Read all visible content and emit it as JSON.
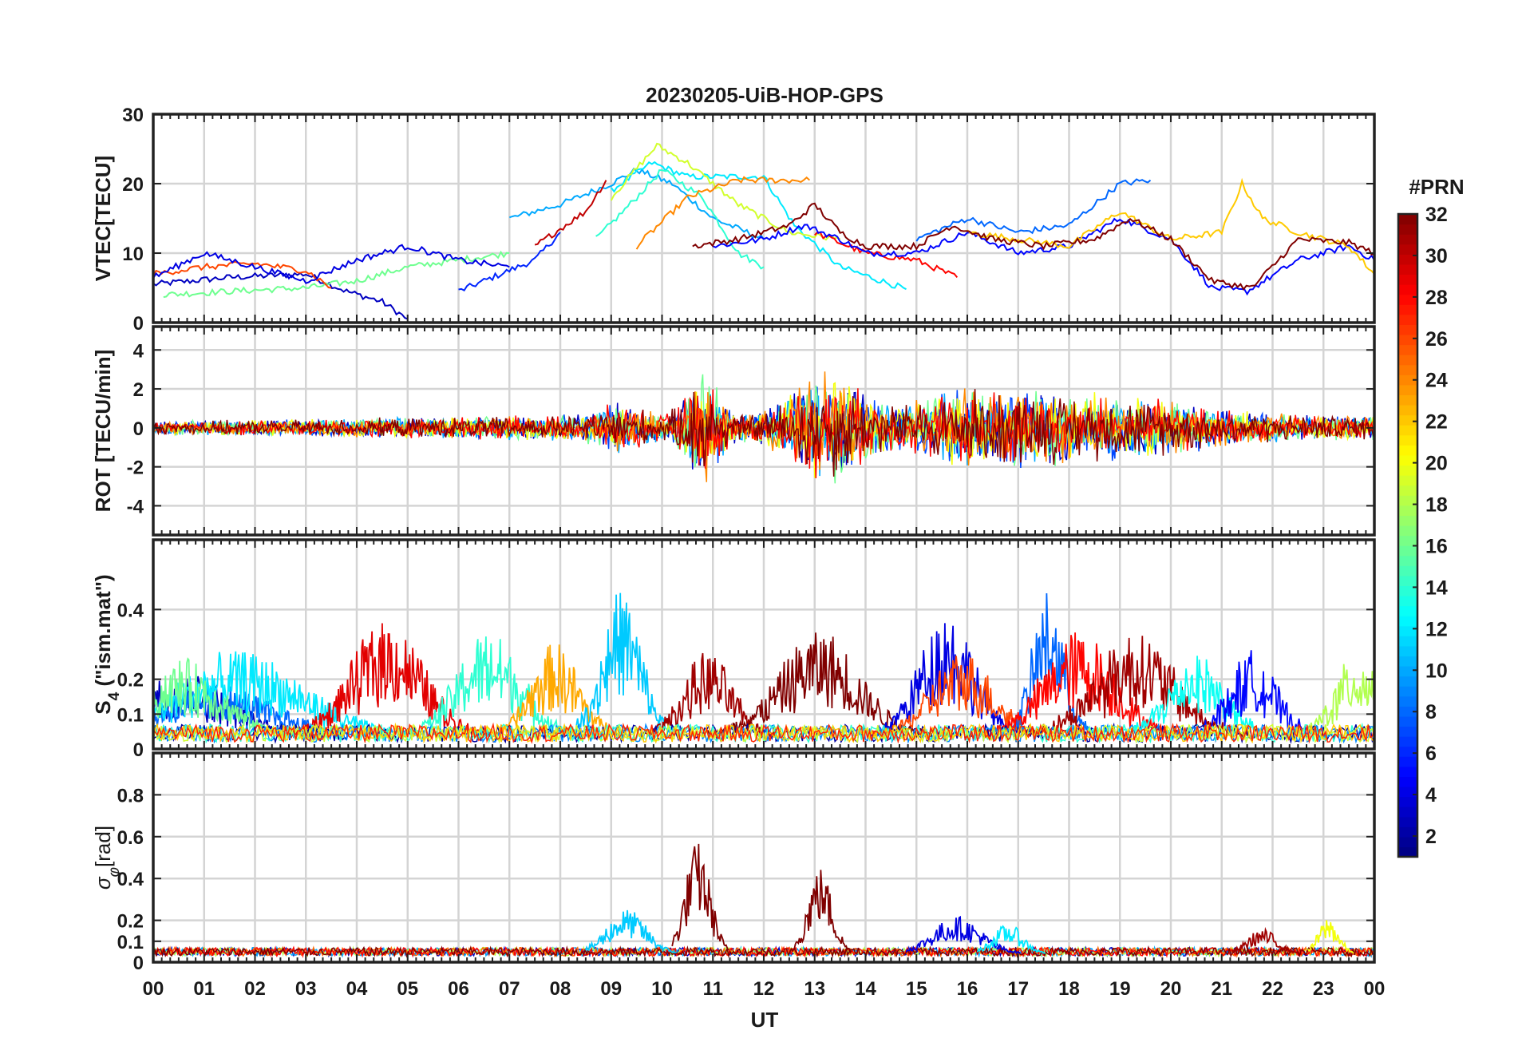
{
  "chart_data": {
    "type": "line",
    "title": "20230205-UiB-HOP-GPS",
    "xlabel": "UT",
    "x_tick_labels": [
      "00",
      "01",
      "02",
      "03",
      "04",
      "05",
      "06",
      "07",
      "08",
      "09",
      "10",
      "11",
      "12",
      "13",
      "14",
      "15",
      "16",
      "17",
      "18",
      "19",
      "20",
      "21",
      "22",
      "23",
      "00"
    ],
    "xlim_hours": [
      0,
      24
    ],
    "grid": true,
    "colorbar": {
      "label": "#PRN",
      "range": [
        1,
        32
      ],
      "ticks": [
        2,
        4,
        6,
        8,
        10,
        12,
        14,
        16,
        18,
        20,
        22,
        24,
        26,
        28,
        30,
        32
      ],
      "tick_labels": [
        "2",
        "4",
        "6",
        "8",
        "10",
        "12",
        "14",
        "16",
        "18",
        "20",
        "22",
        "24",
        "26",
        "28",
        "30",
        "32"
      ],
      "colormap": "jet"
    },
    "panels": [
      {
        "id": "vtec",
        "ylabel": "VTEC[TECU]",
        "ylim": [
          0,
          30
        ],
        "yticks": [
          0,
          10,
          20,
          30
        ],
        "ytick_labels": [
          "0",
          "10",
          "20",
          "30"
        ],
        "series": [
          {
            "prn": 3,
            "points": [
              [
                0,
                5.5
              ],
              [
                1.5,
                6.5
              ],
              [
                3,
                7
              ],
              [
                3.8,
                4.5
              ],
              [
                4.5,
                3
              ],
              [
                5,
                0.5
              ]
            ]
          },
          {
            "prn": 6,
            "points": [
              [
                6,
                4.5
              ],
              [
                7.5,
                9
              ],
              [
                8,
                13
              ]
            ]
          },
          {
            "prn": 10,
            "points": [
              [
                7,
                15
              ],
              [
                8,
                17
              ],
              [
                9,
                20
              ],
              [
                9.5,
                22
              ],
              [
                10.2,
                20
              ],
              [
                11,
                15
              ],
              [
                12,
                12
              ]
            ]
          },
          {
            "prn": 12,
            "points": [
              [
                9,
                19
              ],
              [
                9.8,
                23
              ],
              [
                10.5,
                21
              ],
              [
                12,
                21
              ],
              [
                12.6,
                14
              ],
              [
                13.5,
                8
              ],
              [
                14.8,
                4.8
              ]
            ]
          },
          {
            "prn": 14,
            "points": [
              [
                8.7,
                12
              ],
              [
                9.5,
                18
              ],
              [
                10,
                22
              ],
              [
                10.8,
                18
              ],
              [
                11.5,
                10
              ],
              [
                12,
                8
              ]
            ]
          },
          {
            "prn": 16,
            "points": [
              [
                0.2,
                4
              ],
              [
                1.5,
                4.5
              ],
              [
                3,
                5
              ],
              [
                4,
                6
              ],
              [
                5,
                8
              ],
              [
                6,
                9
              ],
              [
                7,
                10
              ]
            ]
          },
          {
            "prn": 19,
            "points": [
              [
                9,
                18
              ],
              [
                9.9,
                25.5
              ],
              [
                10.5,
                23
              ],
              [
                11.5,
                17
              ],
              [
                12.5,
                13
              ],
              [
                13.5,
                12
              ]
            ]
          },
          {
            "prn": 24,
            "points": [
              [
                9.5,
                11
              ],
              [
                10.5,
                18
              ],
              [
                11.5,
                20.5
              ],
              [
                12.5,
                20.5
              ],
              [
                12.9,
                20.5
              ]
            ]
          },
          {
            "prn": 28,
            "points": [
              [
                13,
                13
              ],
              [
                14,
                10
              ],
              [
                15,
                9
              ],
              [
                15.8,
                6.5
              ]
            ]
          },
          {
            "prn": 30,
            "points": [
              [
                7.5,
                11
              ],
              [
                8.5,
                16
              ],
              [
                8.9,
                20.5
              ]
            ]
          },
          {
            "prn": 5,
            "points": [
              [
                11,
                11
              ],
              [
                12,
                12
              ],
              [
                12.8,
                14
              ],
              [
                13.5,
                12
              ],
              [
                14,
                10
              ],
              [
                15,
                10
              ],
              [
                16,
                13
              ],
              [
                17,
                10
              ],
              [
                18,
                11
              ],
              [
                19,
                15
              ],
              [
                20,
                12
              ],
              [
                20.8,
                5
              ],
              [
                21.5,
                4.5
              ],
              [
                22.5,
                9
              ],
              [
                23.5,
                11
              ],
              [
                24,
                9
              ]
            ]
          },
          {
            "prn": 8,
            "points": [
              [
                15,
                12
              ],
              [
                16,
                15
              ],
              [
                17,
                13
              ],
              [
                18,
                14
              ],
              [
                19,
                20
              ],
              [
                19.6,
                20.5
              ]
            ]
          },
          {
            "prn": 22,
            "points": [
              [
                16,
                13
              ],
              [
                17,
                12
              ],
              [
                18,
                11
              ],
              [
                19,
                16
              ],
              [
                20,
                12
              ],
              [
                21,
                13
              ],
              [
                21.4,
                20
              ],
              [
                21.8,
                15
              ],
              [
                22.5,
                13
              ],
              [
                23.5,
                11
              ],
              [
                24,
                7
              ]
            ]
          },
          {
            "prn": 32,
            "points": [
              [
                10.6,
                11
              ],
              [
                11.5,
                12
              ],
              [
                12.5,
                14
              ],
              [
                13,
                17
              ],
              [
                13.5,
                13
              ],
              [
                14,
                11
              ],
              [
                15,
                11
              ],
              [
                15.7,
                14
              ],
              [
                16.5,
                12
              ],
              [
                17.5,
                11
              ],
              [
                18.5,
                12
              ],
              [
                19.2,
                15
              ],
              [
                20,
                12
              ],
              [
                20.8,
                6
              ],
              [
                21.6,
                5
              ],
              [
                22.5,
                12
              ],
              [
                23.5,
                11.5
              ],
              [
                24,
                10
              ]
            ]
          },
          {
            "prn": 26,
            "points": [
              [
                0,
                7
              ],
              [
                1,
                8
              ],
              [
                2,
                8.5
              ],
              [
                3,
                7.5
              ],
              [
                3.5,
                5
              ]
            ]
          },
          {
            "prn": 4,
            "points": [
              [
                0,
                6.5
              ],
              [
                1,
                10
              ],
              [
                2,
                8
              ],
              [
                3,
                6
              ],
              [
                4,
                9
              ],
              [
                5,
                11
              ],
              [
                6,
                9
              ],
              [
                7,
                8
              ]
            ]
          }
        ]
      },
      {
        "id": "rot",
        "ylabel": "ROT [TECU/min]",
        "ylim": [
          -5.5,
          5.2
        ],
        "yticks": [
          -4,
          -2,
          0,
          2,
          4
        ],
        "ytick_labels": [
          "-4",
          "-2",
          "0",
          "2",
          "4"
        ]
      },
      {
        "id": "s4",
        "ylabel": "S4 (\"ism.mat\")",
        "ylim": [
          0,
          0.6
        ],
        "yticks": [
          0,
          0.1,
          0.2,
          0.4
        ],
        "ytick_labels": [
          "0",
          "0.1",
          "0.2",
          "0.4"
        ]
      },
      {
        "id": "sigma",
        "ylabel": "σφ[rad]",
        "ylim": [
          0,
          1.0
        ],
        "yticks": [
          0,
          0.1,
          0.2,
          0.4,
          0.6,
          0.8
        ],
        "ytick_labels": [
          "0",
          "0.1",
          "0.2",
          "0.4",
          "0.6",
          "0.8"
        ]
      }
    ]
  }
}
